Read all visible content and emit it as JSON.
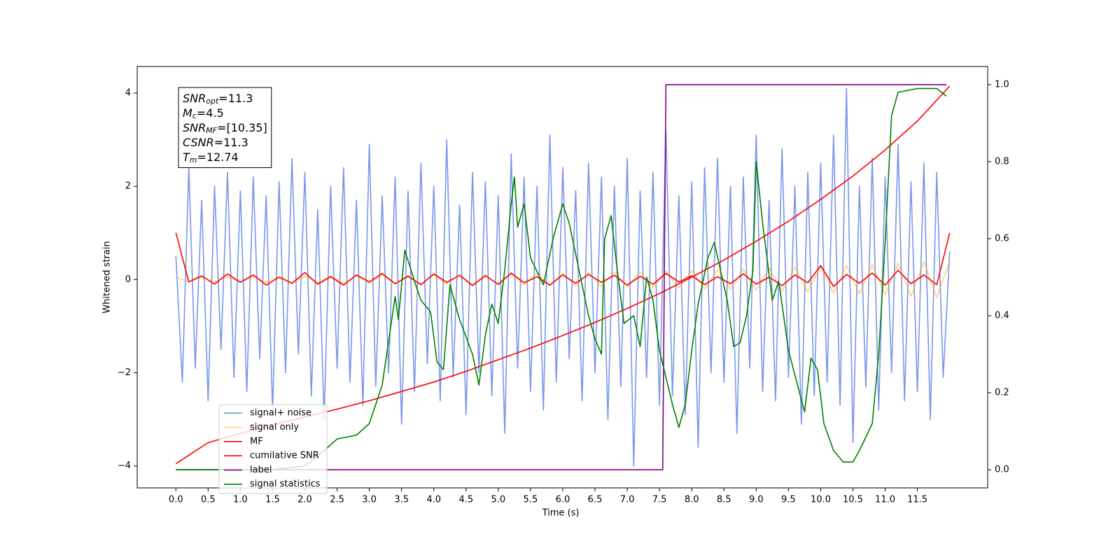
{
  "chart_data": {
    "type": "line",
    "xlabel": "Time (s)",
    "ylabel": "Whitened strain",
    "xlim": [
      -0.6,
      12.59
    ],
    "ylim": [
      -4.47,
      4.57
    ],
    "y2lim": [
      -0.047,
      1.047
    ],
    "xticks": [
      {
        "value": 0,
        "label": "0.0"
      },
      {
        "value": 0.5,
        "label": "0.5"
      },
      {
        "value": 1,
        "label": "1.0"
      },
      {
        "value": 1.5,
        "label": "1.5"
      },
      {
        "value": 2,
        "label": "2.0"
      },
      {
        "value": 2.5,
        "label": "2.5"
      },
      {
        "value": 3,
        "label": "3.0"
      },
      {
        "value": 3.5,
        "label": "3.5"
      },
      {
        "value": 4,
        "label": "4.0"
      },
      {
        "value": 4.5,
        "label": "4.5"
      },
      {
        "value": 5,
        "label": "5.0"
      },
      {
        "value": 5.5,
        "label": "5.5"
      },
      {
        "value": 6,
        "label": "6.0"
      },
      {
        "value": 6.5,
        "label": "6.5"
      },
      {
        "value": 7,
        "label": "7.0"
      },
      {
        "value": 7.5,
        "label": "7.5"
      },
      {
        "value": 8,
        "label": "8.0"
      },
      {
        "value": 8.5,
        "label": "8.5"
      },
      {
        "value": 9,
        "label": "9.0"
      },
      {
        "value": 9.5,
        "label": "9.5"
      },
      {
        "value": 10,
        "label": "10.0"
      },
      {
        "value": 10.5,
        "label": "10.5"
      },
      {
        "value": 11,
        "label": "11.0"
      },
      {
        "value": 11.5,
        "label": "11.5"
      }
    ],
    "yticks": [
      {
        "value": -4,
        "label": "−4"
      },
      {
        "value": -2,
        "label": "−2"
      },
      0,
      2,
      4
    ],
    "y2ticks": [
      {
        "value": 0,
        "label": "0.0"
      },
      {
        "value": 0.2,
        "label": "0.2"
      },
      {
        "value": 0.4,
        "label": "0.4"
      },
      {
        "value": 0.6,
        "label": "0.6"
      },
      {
        "value": 0.8,
        "label": "0.8"
      },
      {
        "value": 1,
        "label": "1.0"
      }
    ],
    "legend": "lower left",
    "annotation": [
      {
        "symbol": "SNR",
        "subscript": "opt",
        "value": "=11.3"
      },
      {
        "symbol": "M",
        "subscript": "c",
        "value": "=4.5"
      },
      {
        "symbol": "SNR",
        "subscript": "MF",
        "value": "=[10.35]"
      },
      {
        "symbol": "CSNR",
        "value": "=11.3"
      },
      {
        "symbol": "T",
        "subscript": "m",
        "value": "=12.74"
      }
    ],
    "series": [
      {
        "name": "signal+ noise",
        "color": "#4169e1",
        "alpha": 0.7,
        "x": [
          0,
          0.1,
          0.2,
          0.3,
          0.4,
          0.5,
          0.6,
          0.7,
          0.8,
          0.9,
          1,
          1.1,
          1.2,
          1.3,
          1.4,
          1.5,
          1.6,
          1.7,
          1.8,
          1.9,
          2,
          2.1,
          2.2,
          2.3,
          2.4,
          2.5,
          2.6,
          2.7,
          2.8,
          2.9,
          3,
          3.1,
          3.2,
          3.3,
          3.4,
          3.5,
          3.6,
          3.7,
          3.8,
          3.9,
          4,
          4.1,
          4.2,
          4.3,
          4.4,
          4.5,
          4.6,
          4.7,
          4.8,
          4.9,
          5,
          5.1,
          5.2,
          5.3,
          5.4,
          5.5,
          5.6,
          5.7,
          5.8,
          5.9,
          6,
          6.1,
          6.2,
          6.3,
          6.4,
          6.5,
          6.6,
          6.7,
          6.8,
          6.9,
          7,
          7.1,
          7.2,
          7.3,
          7.4,
          7.5,
          7.6,
          7.7,
          7.8,
          7.9,
          8,
          8.1,
          8.2,
          8.3,
          8.4,
          8.5,
          8.6,
          8.7,
          8.8,
          8.9,
          9,
          9.1,
          9.2,
          9.3,
          9.4,
          9.5,
          9.6,
          9.7,
          9.8,
          9.9,
          10,
          10.1,
          10.2,
          10.3,
          10.4,
          10.5,
          10.6,
          10.7,
          10.8,
          10.9,
          11,
          11.1,
          11.2,
          11.3,
          11.4,
          11.5,
          11.6,
          11.7,
          11.8,
          11.9,
          12
        ],
        "values": [
          0.5,
          -2.2,
          2.4,
          -1.9,
          1.7,
          -2.6,
          2.0,
          -1.5,
          2.3,
          -2.1,
          1.9,
          -2.4,
          2.2,
          -1.7,
          1.8,
          -2.8,
          2.1,
          -2.0,
          2.6,
          -1.6,
          2.3,
          -2.5,
          1.5,
          -3.0,
          2.0,
          -1.9,
          2.4,
          -2.2,
          1.7,
          -2.7,
          2.9,
          -2.3,
          1.8,
          -2.0,
          2.2,
          -3.1,
          1.9,
          -2.4,
          2.5,
          -1.8,
          2.0,
          -2.6,
          3.0,
          -2.1,
          1.6,
          -2.9,
          2.3,
          -2.0,
          2.1,
          -2.5,
          1.8,
          -3.3,
          2.7,
          -1.9,
          2.2,
          -2.4,
          2.0,
          -2.8,
          3.1,
          -2.2,
          2.4,
          -1.7,
          1.9,
          -2.6,
          2.5,
          -2.0,
          2.2,
          -3.0,
          2.0,
          -2.3,
          2.6,
          -4.0,
          1.9,
          -2.1,
          2.3,
          -2.7,
          3.2,
          -2.5,
          1.8,
          -2.9,
          2.1,
          -3.6,
          2.4,
          -2.0,
          2.6,
          -2.2,
          2.0,
          -3.3,
          2.2,
          -1.9,
          3.1,
          -2.4,
          1.7,
          -2.6,
          2.8,
          -2.1,
          2.0,
          -3.1,
          2.3,
          -2.5,
          2.5,
          -2.2,
          3.1,
          -2.7,
          4.1,
          -3.5,
          2.0,
          -2.3,
          2.6,
          -2.8,
          2.2,
          -2.0,
          2.9,
          -2.6,
          2.1,
          -2.4,
          2.5,
          -3.0,
          2.3,
          -2.1,
          0.6
        ]
      },
      {
        "name": "signal only",
        "color": "#ffa500",
        "alpha": 0.5,
        "x": [
          0,
          0.2,
          0.4,
          0.6,
          0.8,
          1,
          1.2,
          1.4,
          1.6,
          1.8,
          2,
          2.2,
          2.4,
          2.6,
          2.8,
          3,
          3.2,
          3.4,
          3.6,
          3.8,
          4,
          4.2,
          4.4,
          4.6,
          4.8,
          5,
          5.2,
          5.4,
          5.6,
          5.8,
          6,
          6.2,
          6.4,
          6.6,
          6.8,
          7,
          7.2,
          7.4,
          7.6,
          7.8,
          8,
          8.2,
          8.4,
          8.6,
          8.8,
          9,
          9.2,
          9.4,
          9.6,
          9.8,
          10,
          10.2,
          10.4,
          10.6,
          10.8,
          11,
          11.2,
          11.4,
          11.6,
          11.8,
          12
        ],
        "values": [
          0.05,
          -0.05,
          0.05,
          -0.05,
          0.06,
          -0.06,
          0.06,
          -0.06,
          0.07,
          -0.07,
          0.07,
          -0.07,
          0.08,
          -0.08,
          0.08,
          -0.08,
          0.09,
          -0.09,
          0.09,
          -0.1,
          0.1,
          -0.1,
          0.11,
          -0.11,
          0.11,
          -0.12,
          0.12,
          -0.12,
          0.13,
          -0.13,
          0.14,
          -0.14,
          0.15,
          -0.15,
          0.16,
          -0.16,
          0.17,
          -0.17,
          0.18,
          -0.18,
          0.19,
          -0.2,
          0.21,
          -0.21,
          0.22,
          -0.23,
          0.24,
          -0.25,
          0.26,
          -0.27,
          0.28,
          -0.29,
          0.3,
          -0.31,
          0.32,
          -0.33,
          0.35,
          -0.36,
          0.38,
          -0.39,
          0.4
        ]
      },
      {
        "name": "MF",
        "color": "#ff0000",
        "alpha": 1,
        "x": [
          0,
          0.2,
          0.4,
          0.6,
          0.8,
          1,
          1.2,
          1.4,
          1.6,
          1.8,
          2,
          2.2,
          2.4,
          2.6,
          2.8,
          3,
          3.2,
          3.4,
          3.6,
          3.8,
          4,
          4.2,
          4.4,
          4.6,
          4.8,
          5,
          5.2,
          5.4,
          5.6,
          5.8,
          6,
          6.2,
          6.4,
          6.6,
          6.8,
          7,
          7.2,
          7.4,
          7.6,
          7.8,
          8,
          8.2,
          8.4,
          8.6,
          8.8,
          9,
          9.2,
          9.4,
          9.6,
          9.8,
          10,
          10.2,
          10.4,
          10.6,
          10.8,
          11,
          11.2,
          11.4,
          11.6,
          11.8,
          12
        ],
        "values": [
          1.0,
          -0.05,
          0.08,
          -0.1,
          0.12,
          -0.06,
          0.1,
          -0.12,
          0.05,
          -0.08,
          0.15,
          -0.1,
          0.06,
          -0.12,
          0.1,
          -0.05,
          0.13,
          -0.09,
          0.07,
          -0.11,
          0.12,
          -0.06,
          0.09,
          -0.13,
          0.08,
          -0.1,
          0.14,
          -0.07,
          0.06,
          -0.12,
          0.1,
          -0.08,
          0.11,
          -0.06,
          0.09,
          -0.12,
          0.07,
          -0.1,
          0.13,
          -0.05,
          0.08,
          -0.11,
          0.06,
          -0.09,
          0.12,
          -0.1,
          0.05,
          -0.13,
          0.1,
          -0.07,
          0.3,
          -0.15,
          0.11,
          -0.08,
          0.14,
          -0.12,
          0.2,
          -0.09,
          0.1,
          -0.11,
          1.0
        ]
      },
      {
        "name": "cumilative SNR",
        "color": "#ff0000",
        "alpha": 1,
        "x": [
          0,
          0.5,
          1,
          1.5,
          2,
          2.5,
          3,
          3.5,
          4,
          4.5,
          5,
          5.5,
          6,
          6.5,
          7,
          7.5,
          8,
          8.5,
          9,
          9.5,
          10,
          10.5,
          11,
          11.5,
          12
        ],
        "values": [
          -3.95,
          -3.5,
          -3.3,
          -3.12,
          -2.95,
          -2.78,
          -2.6,
          -2.4,
          -2.2,
          -1.97,
          -1.72,
          -1.47,
          -1.2,
          -0.92,
          -0.62,
          -0.3,
          0.05,
          0.42,
          0.82,
          1.25,
          1.72,
          2.22,
          2.78,
          3.4,
          4.15
        ]
      },
      {
        "name": "label",
        "color": "#800080",
        "alpha": 1,
        "axis": "y2",
        "x": [
          0,
          7.55,
          7.6,
          11.95
        ],
        "values": [
          0,
          0,
          1,
          1
        ]
      },
      {
        "name": "signal statistics",
        "color": "#008000",
        "alpha": 1,
        "axis": "y2",
        "x": [
          0,
          1.5,
          2,
          2.3,
          2.5,
          2.8,
          3,
          3.2,
          3.4,
          3.45,
          3.55,
          3.7,
          3.8,
          3.95,
          4.05,
          4.15,
          4.25,
          4.4,
          4.6,
          4.7,
          4.8,
          4.9,
          5,
          5.1,
          5.2,
          5.25,
          5.3,
          5.4,
          5.5,
          5.7,
          5.85,
          6,
          6.1,
          6.4,
          6.5,
          6.6,
          6.65,
          6.75,
          6.85,
          6.95,
          7.1,
          7.2,
          7.3,
          7.4,
          7.5,
          7.7,
          7.8,
          7.9,
          8,
          8.1,
          8.25,
          8.35,
          8.55,
          8.65,
          8.75,
          8.85,
          8.95,
          9,
          9.1,
          9.25,
          9.35,
          9.5,
          9.75,
          9.85,
          9.95,
          10.05,
          10.2,
          10.35,
          10.5,
          10.6,
          10.8,
          10.9,
          11,
          11.1,
          11.2,
          11.5,
          11.8,
          11.95
        ],
        "values": [
          0,
          0,
          0.01,
          0.05,
          0.08,
          0.09,
          0.12,
          0.22,
          0.45,
          0.39,
          0.57,
          0.49,
          0.44,
          0.41,
          0.28,
          0.26,
          0.48,
          0.39,
          0.3,
          0.22,
          0.35,
          0.43,
          0.38,
          0.52,
          0.69,
          0.76,
          0.63,
          0.69,
          0.55,
          0.48,
          0.6,
          0.69,
          0.64,
          0.4,
          0.34,
          0.3,
          0.6,
          0.66,
          0.51,
          0.38,
          0.4,
          0.32,
          0.5,
          0.44,
          0.31,
          0.17,
          0.11,
          0.17,
          0.31,
          0.43,
          0.55,
          0.59,
          0.44,
          0.32,
          0.33,
          0.4,
          0.52,
          0.8,
          0.64,
          0.44,
          0.49,
          0.31,
          0.15,
          0.29,
          0.26,
          0.12,
          0.05,
          0.02,
          0.02,
          0.05,
          0.12,
          0.3,
          0.59,
          0.92,
          0.98,
          0.99,
          0.99,
          0.97
        ]
      }
    ]
  }
}
